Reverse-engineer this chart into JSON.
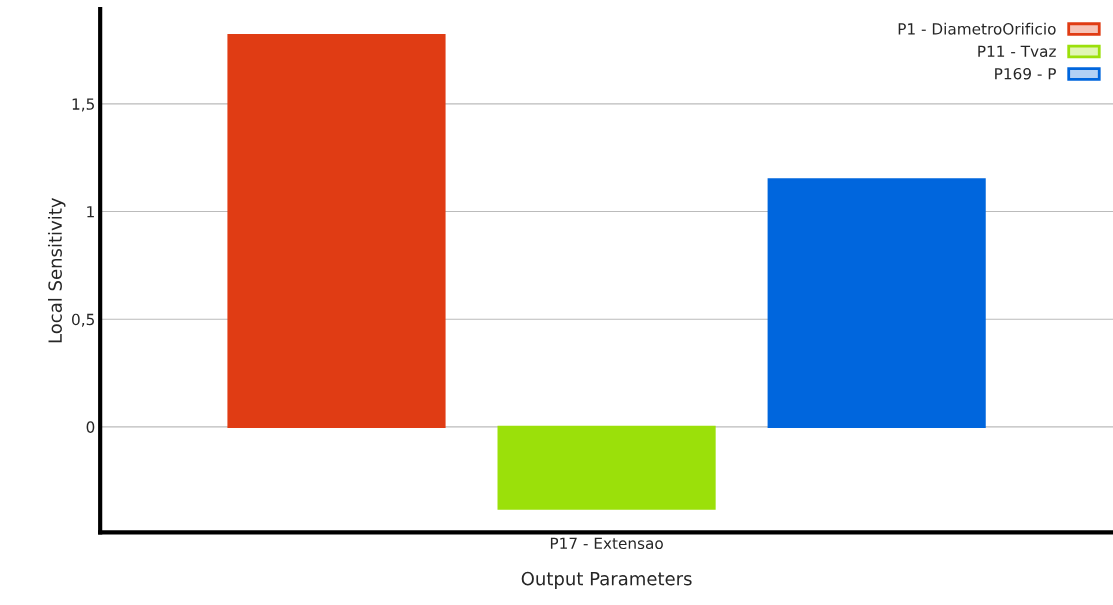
{
  "chart_data": {
    "type": "bar",
    "xlabel": "Output Parameters",
    "ylabel": "Local Sensitivity",
    "categories": [
      "P17 - Extensao"
    ],
    "series": [
      {
        "name": "P1 - DiametroOrificio",
        "color": "#e03c14",
        "values": [
          1.82
        ]
      },
      {
        "name": "P11 - Tvaz",
        "color": "#9be00a",
        "values": [
          -0.38
        ]
      },
      {
        "name": "P169 - P",
        "color": "#0066dd",
        "values": [
          1.15
        ]
      }
    ],
    "ylim": [
      -0.49,
      1.94
    ],
    "yticks": [
      0,
      {
        "value": 0.5,
        "label": "0,5"
      },
      1,
      {
        "value": 1.5,
        "label": "1,5"
      }
    ],
    "grid": "y",
    "legend": "top right"
  }
}
